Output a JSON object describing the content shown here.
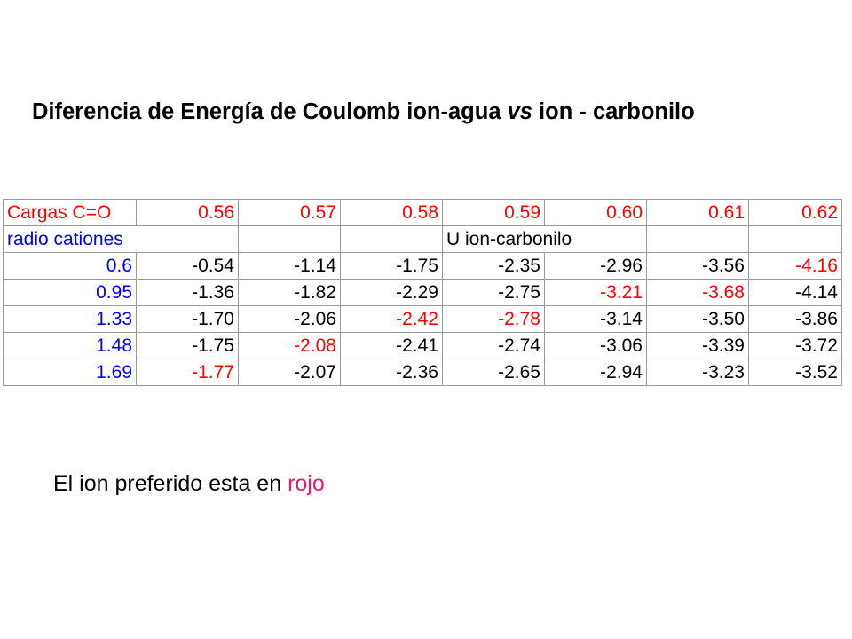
{
  "title": {
    "part1": "Diferencia de Energía de Coulomb ion-agua ",
    "vs": "vs",
    "part2": " ion - carbonilo"
  },
  "table": {
    "header_label": "Cargas C=O",
    "charges": [
      "0.56",
      "0.57",
      "0.58",
      "0.59",
      "0.60",
      "0.61",
      "0.62"
    ],
    "radius_label": "radio cationes",
    "energy_label": "U ion-carbonilo",
    "rows": [
      {
        "radius": "0.6",
        "values": [
          "-0.54",
          "-1.14",
          "-1.75",
          "-2.35",
          "-2.96",
          "-3.56",
          "-4.16"
        ],
        "highlight": [
          false,
          false,
          false,
          false,
          false,
          false,
          true
        ]
      },
      {
        "radius": "0.95",
        "values": [
          "-1.36",
          "-1.82",
          "-2.29",
          "-2.75",
          "-3.21",
          "-3.68",
          "-4.14"
        ],
        "highlight": [
          false,
          false,
          false,
          false,
          true,
          true,
          false
        ]
      },
      {
        "radius": "1.33",
        "values": [
          "-1.70",
          "-2.06",
          "-2.42",
          "-2.78",
          "-3.14",
          "-3.50",
          "-3.86"
        ],
        "highlight": [
          false,
          false,
          true,
          true,
          false,
          false,
          false
        ]
      },
      {
        "radius": "1.48",
        "values": [
          "-1.75",
          "-2.08",
          "-2.41",
          "-2.74",
          "-3.06",
          "-3.39",
          "-3.72"
        ],
        "highlight": [
          false,
          true,
          false,
          false,
          false,
          false,
          false
        ]
      },
      {
        "radius": "1.69",
        "values": [
          "-1.77",
          "-2.07",
          "-2.36",
          "-2.65",
          "-2.94",
          "-3.23",
          "-3.52"
        ],
        "highlight": [
          true,
          false,
          false,
          false,
          false,
          false,
          false
        ]
      }
    ]
  },
  "footnote": {
    "text": "El ion preferido esta en ",
    "highlight_word": "rojo"
  },
  "colors": {
    "header_red": "#ff0000",
    "radius_blue": "#0000ff",
    "highlight_red": "#ff0000",
    "footnote_pink": "#e8196e",
    "border_gray": "#9a9a9a"
  }
}
